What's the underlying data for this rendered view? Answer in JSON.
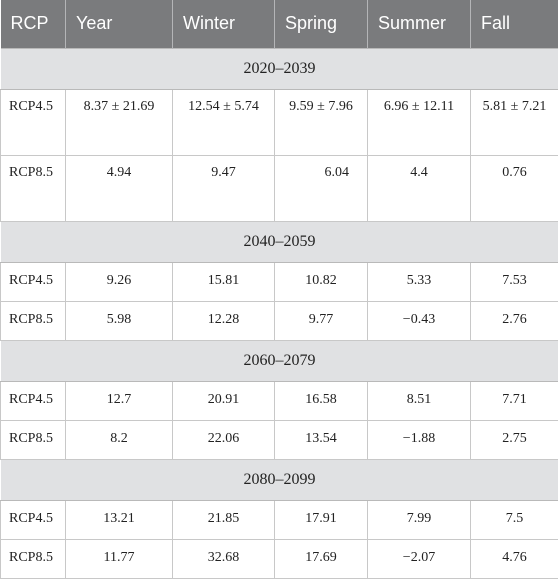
{
  "table": {
    "headers": [
      "RCP",
      "Year",
      "Winter",
      "Spring",
      "Summer",
      "Fall"
    ],
    "periods": [
      {
        "label": "2020–2039",
        "rows": [
          {
            "rcp": "RCP4.5",
            "year": "8.37 ± 21.69",
            "winter": "12.54 ± 5.74",
            "spring": "9.59 ± 7.96",
            "summer": "6.96 ± 12.11",
            "fall": "5.81 ± 7.21"
          },
          {
            "rcp": "RCP8.5",
            "year": "4.94",
            "winter": "9.47",
            "spring": "6.04",
            "summer": "4.4",
            "fall": "0.76"
          }
        ]
      },
      {
        "label": "2040–2059",
        "rows": [
          {
            "rcp": "RCP4.5",
            "year": "9.26",
            "winter": "15.81",
            "spring": "10.82",
            "summer": "5.33",
            "fall": "7.53"
          },
          {
            "rcp": "RCP8.5",
            "year": "5.98",
            "winter": "12.28",
            "spring": "9.77",
            "summer": "−0.43",
            "fall": "2.76"
          }
        ]
      },
      {
        "label": "2060–2079",
        "rows": [
          {
            "rcp": "RCP4.5",
            "year": "12.7",
            "winter": "20.91",
            "spring": "16.58",
            "summer": "8.51",
            "fall": "7.71"
          },
          {
            "rcp": "RCP8.5",
            "year": "8.2",
            "winter": "22.06",
            "spring": "13.54",
            "summer": "−1.88",
            "fall": "2.75"
          }
        ]
      },
      {
        "label": "2080–2099",
        "rows": [
          {
            "rcp": "RCP4.5",
            "year": "13.21",
            "winter": "21.85",
            "spring": "17.91",
            "summer": "7.99",
            "fall": "7.5"
          },
          {
            "rcp": "RCP8.5",
            "year": "11.77",
            "winter": "32.68",
            "spring": "17.69",
            "summer": "−2.07",
            "fall": "4.76"
          }
        ]
      }
    ]
  },
  "colors": {
    "header_bg": "#7a7b7d",
    "period_bg": "#e0e1e3"
  }
}
